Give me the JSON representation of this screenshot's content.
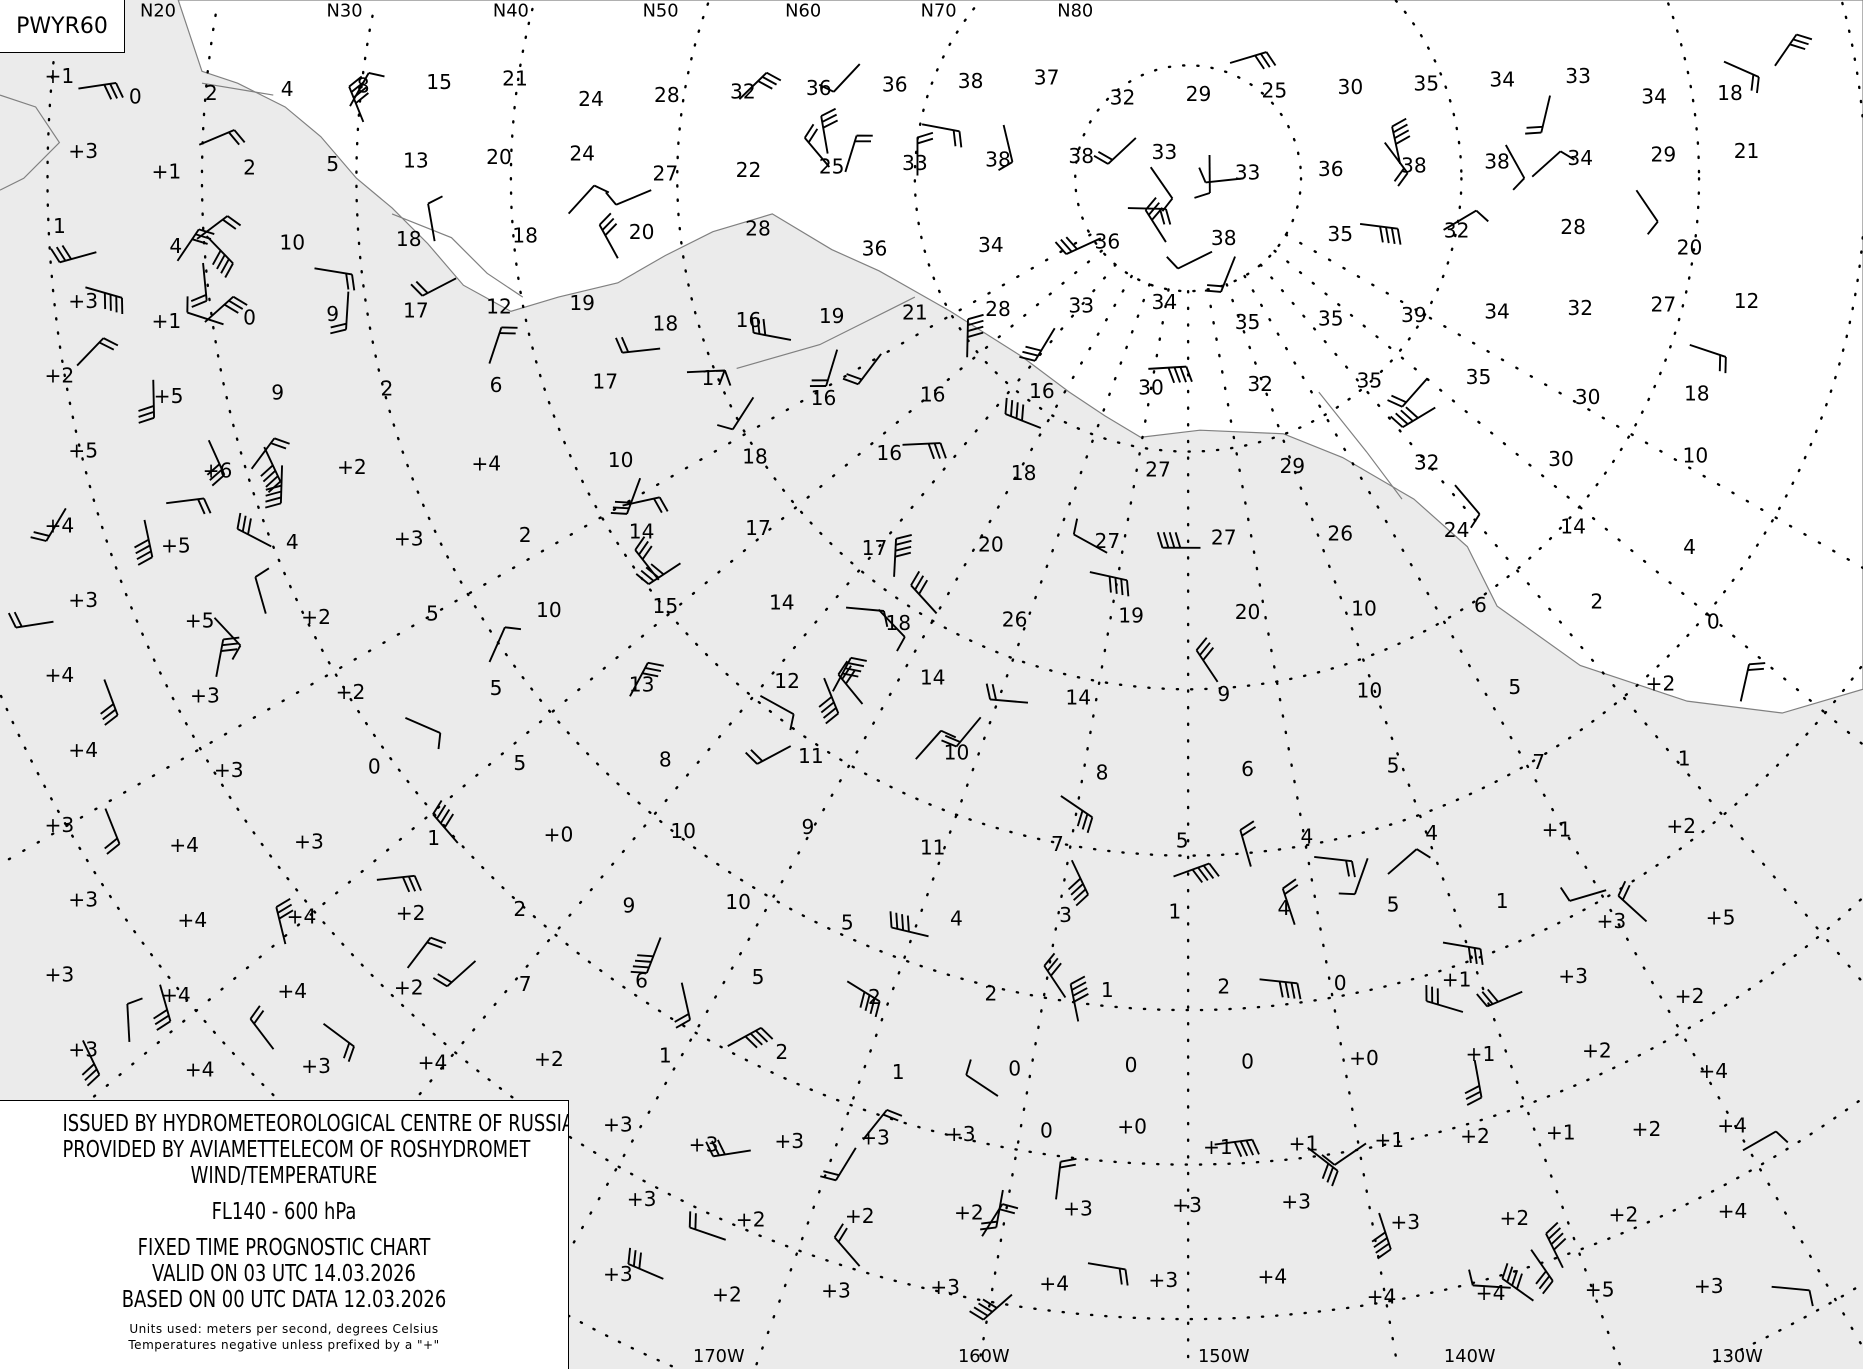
{
  "chart_code": "PWYR60",
  "info": {
    "line1": "ISSUED BY HYDROMETEOROLOGICAL CENTRE OF RUSSIA",
    "line2": "PROVIDED BY AVIAMETTELECOM OF ROSHYDROMET",
    "line3": "WIND/TEMPERATURE",
    "level": "FL140 - 600 hPa",
    "chart_type": "FIXED TIME PROGNOSTIC CHART",
    "valid": "VALID ON 03 UTC 14.03.2026",
    "based": "BASED ON 00 UTC DATA 12.03.2026",
    "units": "Units used: meters per second, degrees Celsius",
    "note": "Temperatures negative unless prefixed by a \"+\""
  },
  "latitude_labels": [
    "N20",
    "N30",
    "N40",
    "N50",
    "N60",
    "N70",
    "N80"
  ],
  "longitude_labels": [
    "170W",
    "160W",
    "150W",
    "140W",
    "130W"
  ],
  "colors": {
    "ocean": "#ebebeb",
    "land": "#ffffff",
    "coast": "#808080",
    "ink": "#000000"
  },
  "temperatures": [
    "+1",
    "0",
    "2",
    "4",
    "8",
    "15",
    "21",
    "24",
    "28",
    "32",
    "36",
    "36",
    "38",
    "37",
    "32",
    "29",
    "25",
    "30",
    "35",
    "34",
    "33",
    "34",
    "18",
    "+3",
    "+1",
    "2",
    "5",
    "13",
    "20",
    "24",
    "27",
    "22",
    "25",
    "33",
    "38",
    "38",
    "33",
    "33",
    "36",
    "38",
    "38",
    "34",
    "29",
    "21",
    "1",
    "4",
    "10",
    "18",
    "18",
    "20",
    "28",
    "36",
    "34",
    "36",
    "38",
    "35",
    "32",
    "28",
    "20",
    "+3",
    "+1",
    "0",
    "9",
    "17",
    "12",
    "19",
    "18",
    "16",
    "19",
    "21",
    "28",
    "33",
    "34",
    "35",
    "35",
    "39",
    "34",
    "32",
    "27",
    "12",
    "+2",
    "+5",
    "9",
    "2",
    "6",
    "17",
    "17",
    "16",
    "16",
    "16",
    "30",
    "32",
    "35",
    "35",
    "30",
    "18",
    "+5",
    "+6",
    "+2",
    "+4",
    "10",
    "18",
    "16",
    "18",
    "27",
    "29",
    "32",
    "30",
    "10",
    "+4",
    "+5",
    "4",
    "+3",
    "2",
    "14",
    "17",
    "17",
    "20",
    "27",
    "27",
    "26",
    "24",
    "14",
    "4",
    "+3",
    "+5",
    "+2",
    "5",
    "10",
    "15",
    "14",
    "18",
    "26",
    "19",
    "20",
    "10",
    "6",
    "2",
    "0",
    "+4",
    "+3",
    "+2",
    "5",
    "13",
    "12",
    "14",
    "14",
    "9",
    "10",
    "5",
    "+2",
    "+4",
    "+3",
    "0",
    "5",
    "8",
    "11",
    "10",
    "8",
    "6",
    "5",
    "7",
    "1",
    "+3",
    "+4",
    "+3",
    "1",
    "+0",
    "10",
    "9",
    "11",
    "7",
    "5",
    "4",
    "4",
    "+1",
    "+2",
    "+3",
    "+4",
    "+4",
    "+2",
    "2",
    "9",
    "10",
    "5",
    "4",
    "3",
    "1",
    "4",
    "5",
    "1",
    "+3",
    "+5",
    "+3",
    "+4",
    "+4",
    "+2",
    "7",
    "6",
    "5",
    "2",
    "2",
    "1",
    "2",
    "0",
    "+1",
    "+3",
    "+2",
    "+3",
    "+4",
    "+3",
    "+4",
    "+2",
    "1",
    "2",
    "1",
    "0",
    "0",
    "0",
    "+0",
    "+1",
    "+2",
    "+4",
    "+3",
    "+3",
    "+3",
    "+3",
    "+3",
    "0",
    "+0",
    "+1",
    "+1",
    "+1",
    "+2",
    "+1",
    "+2",
    "+4",
    "+3",
    "+2",
    "+2",
    "+2",
    "+3",
    "+3",
    "+3",
    "+3",
    "+2",
    "+2",
    "+4",
    "+3",
    "+2",
    "+3",
    "+3",
    "+4",
    "+3",
    "+4",
    "+4",
    "+4",
    "+5",
    "+3"
  ]
}
